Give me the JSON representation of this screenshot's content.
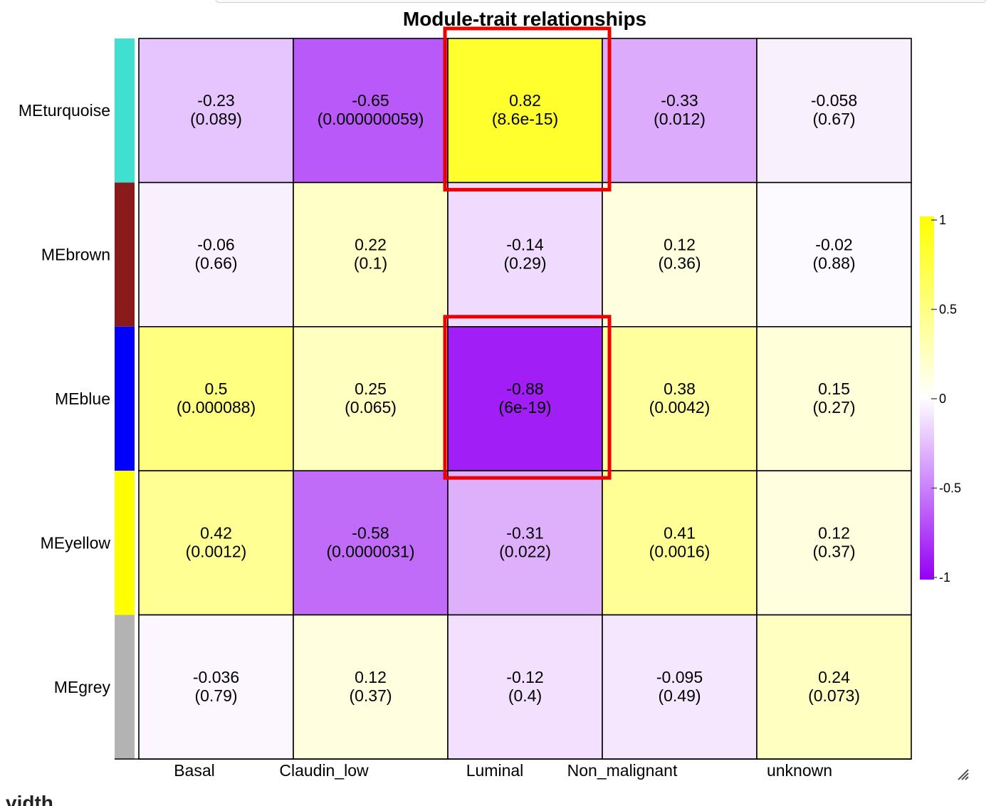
{
  "footer_text": "vidth",
  "chart_data": {
    "type": "heatmap",
    "title": "Module-trait relationships",
    "columns": [
      "Basal",
      "Claudin_low",
      "Luminal",
      "Non_malignant",
      "unknown"
    ],
    "rows": [
      {
        "label": "MEturquoise",
        "color": "#40E0D0",
        "values": [
          -0.23,
          -0.65,
          0.82,
          -0.33,
          -0.058
        ],
        "value_labels": [
          "-0.23",
          "-0.65",
          "0.82",
          "-0.33",
          "-0.058"
        ],
        "pvalues": [
          "(0.089)",
          "(0.000000059)",
          "(8.6e-15)",
          "(0.012)",
          "(0.67)"
        ]
      },
      {
        "label": "MEbrown",
        "color": "#8B1A1A",
        "values": [
          -0.06,
          0.22,
          -0.14,
          0.12,
          -0.02
        ],
        "value_labels": [
          "-0.06",
          "0.22",
          "-0.14",
          "0.12",
          "-0.02"
        ],
        "pvalues": [
          "(0.66)",
          "(0.1)",
          "(0.29)",
          "(0.36)",
          "(0.88)"
        ]
      },
      {
        "label": "MEblue",
        "color": "#0000FF",
        "values": [
          0.5,
          0.25,
          -0.88,
          0.38,
          0.15
        ],
        "value_labels": [
          "0.5",
          "0.25",
          "-0.88",
          "0.38",
          "0.15"
        ],
        "pvalues": [
          "(0.000088)",
          "(0.065)",
          "(6e-19)",
          "(0.0042)",
          "(0.27)"
        ]
      },
      {
        "label": "MEyellow",
        "color": "#FFFF00",
        "values": [
          0.42,
          -0.58,
          -0.31,
          0.41,
          0.12
        ],
        "value_labels": [
          "0.42",
          "-0.58",
          "-0.31",
          "0.41",
          "0.12"
        ],
        "pvalues": [
          "(0.0012)",
          "(0.0000031)",
          "(0.022)",
          "(0.0016)",
          "(0.37)"
        ]
      },
      {
        "label": "MEgrey",
        "color": "#B3B3B3",
        "values": [
          -0.036,
          0.12,
          -0.12,
          -0.095,
          0.24
        ],
        "value_labels": [
          "-0.036",
          "0.12",
          "-0.12",
          "-0.095",
          "0.24"
        ],
        "pvalues": [
          "(0.79)",
          "(0.37)",
          "(0.4)",
          "(0.49)",
          "(0.073)"
        ]
      }
    ],
    "color_scale": {
      "low": "#9400F5",
      "mid": "#FFFFFF",
      "high": "#FFFF00",
      "range": [
        -1,
        1
      ]
    },
    "legend": {
      "ticks": [
        1,
        0.5,
        0,
        -0.5,
        -1
      ],
      "tick_labels": [
        "1",
        "0.5",
        "0",
        "-0.5",
        "-1"
      ],
      "placement": "right"
    },
    "highlights": [
      {
        "row": 0,
        "column": 2,
        "color": "#EE0000"
      },
      {
        "row": 2,
        "column": 2,
        "color": "#EE0000"
      }
    ]
  }
}
